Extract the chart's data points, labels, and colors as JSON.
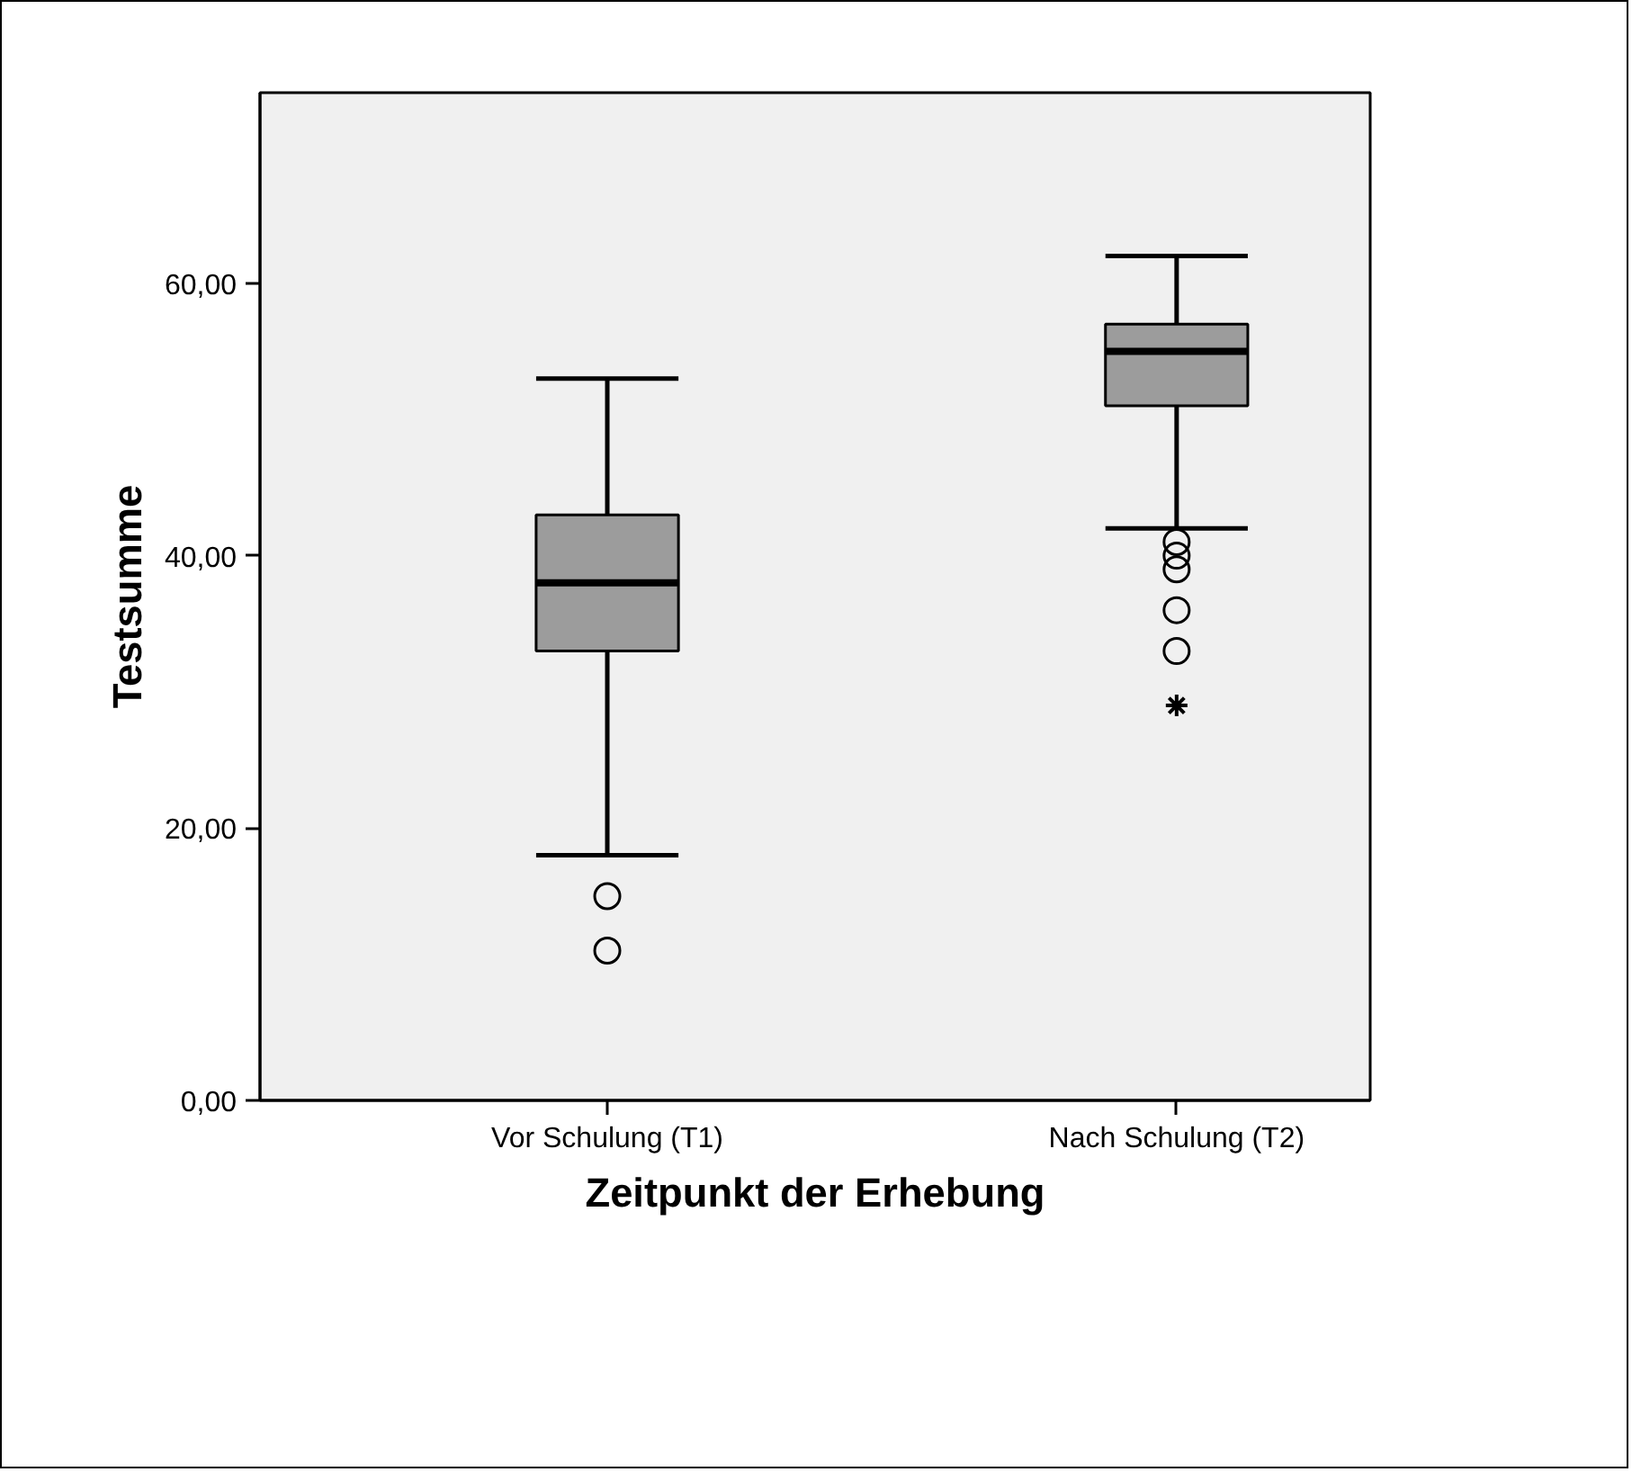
{
  "chart_data": {
    "type": "box",
    "xlabel": "Zeitpunkt der Erhebung",
    "ylabel": "Testsumme",
    "categories": [
      "Vor Schulung (T1)",
      "Nach Schulung (T2)"
    ],
    "boxes": [
      {
        "low": 18,
        "q1": 33,
        "median": 38,
        "q3": 43,
        "high": 53,
        "outliers": [
          15,
          11
        ]
      },
      {
        "low": 42,
        "q1": 51,
        "median": 55,
        "q3": 57,
        "high": 62,
        "outliers": [
          41,
          40,
          39,
          36,
          33,
          29
        ]
      }
    ],
    "color": "#9c9c9c",
    "ylim": [
      0,
      74
    ],
    "yticks": [
      {
        "value": 0,
        "label": "0,00"
      },
      {
        "value": 20,
        "label": "20,00"
      },
      {
        "value": 40,
        "label": "40,00"
      },
      {
        "value": 60,
        "label": "60,00"
      }
    ],
    "grid": false
  }
}
